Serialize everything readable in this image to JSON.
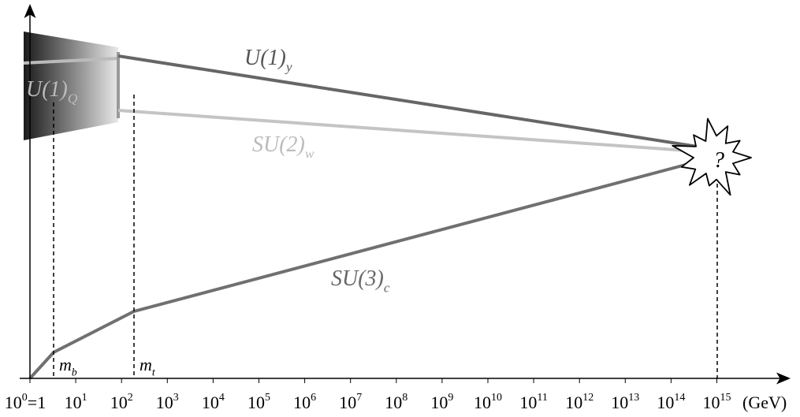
{
  "curves": [
    {
      "main": "U(1)",
      "sub": "y"
    },
    {
      "main": "U(1)",
      "sub": "Q"
    },
    {
      "main": "SU(2)",
      "sub": "w"
    },
    {
      "main": "SU(3)",
      "sub": "c"
    }
  ],
  "thresholds": [
    {
      "main": "m",
      "sub": "b"
    },
    {
      "main": "m",
      "sub": "t"
    }
  ],
  "unification": "?",
  "x_axis": {
    "ticks": [
      {
        "base": "10",
        "exponent": "0",
        "suffix": "=1"
      },
      {
        "base": "10",
        "exponent": "1"
      },
      {
        "base": "10",
        "exponent": "2"
      },
      {
        "base": "10",
        "exponent": "3"
      },
      {
        "base": "10",
        "exponent": "4"
      },
      {
        "base": "10",
        "exponent": "5"
      },
      {
        "base": "10",
        "exponent": "6"
      },
      {
        "base": "10",
        "exponent": "7"
      },
      {
        "base": "10",
        "exponent": "8"
      },
      {
        "base": "10",
        "exponent": "9"
      },
      {
        "base": "10",
        "exponent": "10"
      },
      {
        "base": "10",
        "exponent": "11"
      },
      {
        "base": "10",
        "exponent": "12"
      },
      {
        "base": "10",
        "exponent": "13"
      },
      {
        "base": "10",
        "exponent": "14"
      },
      {
        "base": "10",
        "exponent": "15"
      }
    ],
    "unit": "(GeV)"
  }
}
